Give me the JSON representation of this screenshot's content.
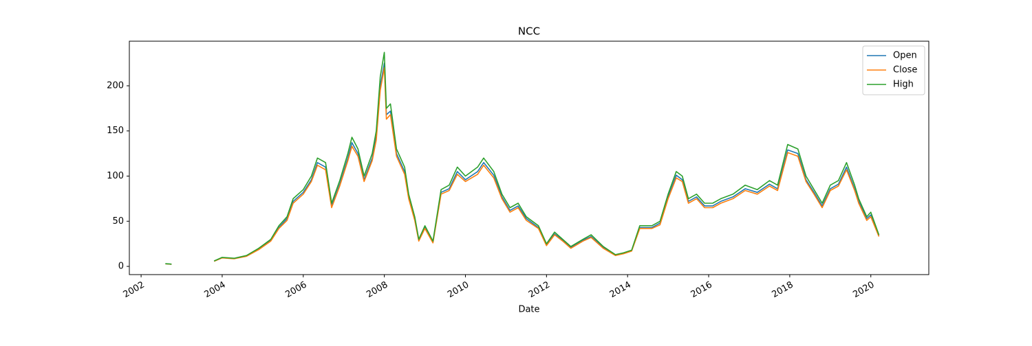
{
  "chart_data": {
    "type": "line",
    "title": "NCC",
    "x_label": "Date",
    "x": [
      2002.6,
      2002.75,
      2003.3,
      2003.8,
      2004.0,
      2004.3,
      2004.6,
      2004.9,
      2005.2,
      2005.4,
      2005.6,
      2005.75,
      2006.0,
      2006.2,
      2006.35,
      2006.55,
      2006.7,
      2006.9,
      2007.1,
      2007.2,
      2007.35,
      2007.5,
      2007.7,
      2007.8,
      2007.9,
      2008.0,
      2008.05,
      2008.15,
      2008.3,
      2008.5,
      2008.6,
      2008.75,
      2008.85,
      2009.0,
      2009.2,
      2009.4,
      2009.6,
      2009.8,
      2010.0,
      2010.3,
      2010.45,
      2010.7,
      2010.9,
      2011.1,
      2011.3,
      2011.5,
      2011.8,
      2012.0,
      2012.2,
      2012.4,
      2012.6,
      2012.9,
      2013.1,
      2013.4,
      2013.7,
      2013.9,
      2014.1,
      2014.3,
      2014.6,
      2014.8,
      2015.0,
      2015.2,
      2015.35,
      2015.5,
      2015.7,
      2015.9,
      2016.1,
      2016.3,
      2016.6,
      2016.9,
      2017.2,
      2017.5,
      2017.7,
      2017.95,
      2018.2,
      2018.4,
      2018.6,
      2018.8,
      2019.0,
      2019.2,
      2019.4,
      2019.6,
      2019.7,
      2019.9,
      2020.0,
      2020.2
    ],
    "series": [
      {
        "name": "Open",
        "color": "#1f77b4",
        "values": [
          2.9,
          2.4,
          null,
          5.8,
          9.6,
          8.7,
          11.5,
          19,
          29,
          43,
          53,
          72,
          82,
          96,
          115,
          110,
          67,
          91,
          120,
          137,
          125,
          96,
          120,
          144,
          200,
          225,
          168,
          172,
          125,
          105,
          77,
          53,
          29,
          43,
          27,
          82,
          86,
          105,
          96,
          105,
          115,
          101,
          77,
          62,
          67,
          53,
          43,
          24,
          36,
          29,
          21,
          29,
          33,
          21,
          12.5,
          14.5,
          17.5,
          43,
          43,
          48,
          77,
          101,
          96,
          72,
          77,
          67,
          67,
          72,
          77,
          86,
          82,
          91,
          86,
          129,
          125,
          96,
          82,
          67,
          86,
          91,
          110,
          86,
          72,
          53,
          57,
          34
        ]
      },
      {
        "name": "Close",
        "color": "#ff7f0e",
        "values": [
          2.8,
          2.3,
          null,
          5.6,
          9.4,
          8.5,
          11.2,
          18.5,
          28,
          42,
          51,
          70,
          80,
          94,
          112,
          107,
          65,
          89,
          117,
          133,
          122,
          94,
          117,
          140,
          195,
          220,
          163,
          168,
          122,
          102,
          75,
          51,
          28,
          42,
          26,
          80,
          84,
          102,
          94,
          102,
          112,
          98,
          75,
          60,
          65,
          51,
          42,
          23,
          35,
          28,
          20,
          28,
          32,
          20,
          12,
          14,
          17,
          42,
          42,
          46,
          75,
          98,
          94,
          70,
          75,
          65,
          65,
          70,
          75,
          84,
          80,
          89,
          84,
          126,
          122,
          94,
          80,
          65,
          84,
          89,
          107,
          84,
          70,
          51,
          55,
          33
        ]
      },
      {
        "name": "High",
        "color": "#2ca02c",
        "values": [
          3,
          2.5,
          null,
          6,
          10,
          9,
          12,
          20,
          30,
          45,
          55,
          75,
          85,
          100,
          120,
          115,
          70,
          95,
          125,
          143,
          130,
          100,
          125,
          150,
          210,
          237,
          175,
          180,
          130,
          110,
          80,
          55,
          30,
          45,
          28,
          85,
          90,
          110,
          100,
          110,
          120,
          105,
          80,
          65,
          70,
          55,
          45,
          25,
          38,
          30,
          22,
          30,
          35,
          22,
          13,
          15,
          18,
          45,
          45,
          50,
          80,
          105,
          100,
          75,
          80,
          70,
          70,
          75,
          80,
          90,
          85,
          95,
          90,
          135,
          130,
          100,
          85,
          70,
          90,
          95,
          115,
          90,
          75,
          55,
          60,
          35
        ]
      }
    ],
    "xlim": [
      2001.71,
      2021.43
    ],
    "xticks": [
      2002,
      2004,
      2006,
      2008,
      2010,
      2012,
      2014,
      2016,
      2018,
      2020
    ],
    "ylim": [
      -9.1,
      249.4
    ],
    "yticks": [
      0,
      50,
      100,
      150,
      200
    ],
    "legend": "upper right"
  }
}
